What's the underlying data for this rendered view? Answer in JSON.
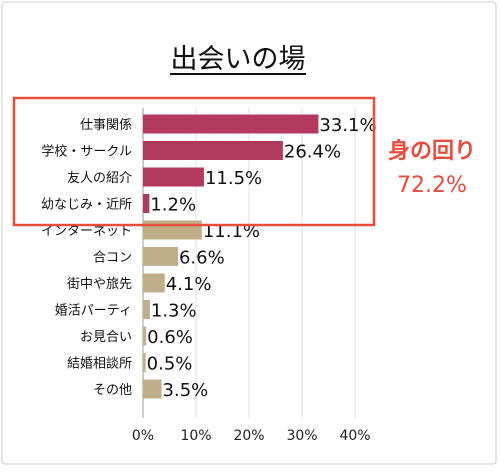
{
  "chart_data": {
    "type": "bar",
    "orientation": "horizontal",
    "title": "出会いの場",
    "categories": [
      "仕事関係",
      "学校・サークル",
      "友人の紹介",
      "幼なじみ・近所",
      "インターネット",
      "合コン",
      "街中や旅先",
      "婚活パーティ",
      "お見合い",
      "結婚相談所",
      "その他"
    ],
    "values": [
      33.1,
      26.4,
      11.5,
      1.2,
      11.1,
      6.6,
      4.1,
      1.3,
      0.6,
      0.5,
      3.5
    ],
    "value_labels": [
      "33.1%",
      "26.4%",
      "11.5%",
      "1.2%",
      "11.1%",
      "6.6%",
      "4.1%",
      "1.3%",
      "0.6%",
      "0.5%",
      "3.5%"
    ],
    "bar_colors": [
      "#b23a5f",
      "#b23a5f",
      "#b23a5f",
      "#b23a5f",
      "#bfae88",
      "#bfae88",
      "#bfae88",
      "#bfae88",
      "#bfae88",
      "#bfae88",
      "#bfae88"
    ],
    "x_ticks": [
      "0%",
      "10%",
      "20%",
      "30%",
      "40%"
    ],
    "xlim": [
      0,
      40
    ],
    "grid": true,
    "highlight": {
      "categories": [
        "仕事関係",
        "学校・サークル",
        "友人の紹介",
        "幼なじみ・近所"
      ],
      "label_line1": "身の回り",
      "label_line2": "72.2%",
      "color": "#e74c3c"
    }
  }
}
